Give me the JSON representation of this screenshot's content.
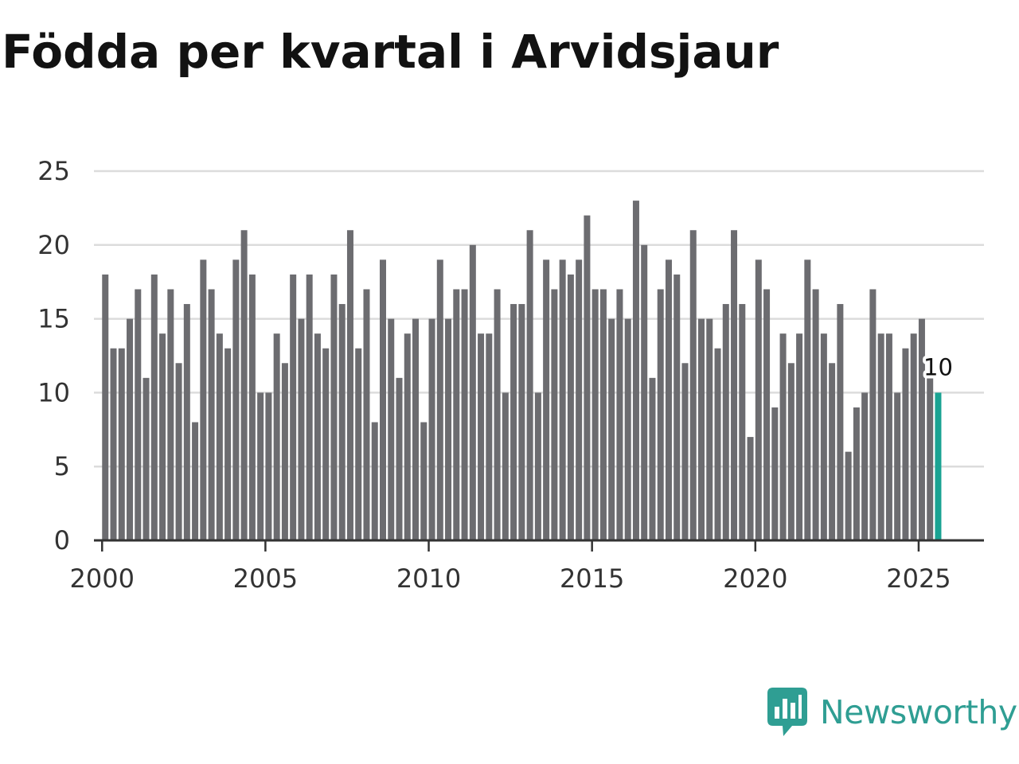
{
  "chart_data": {
    "type": "bar",
    "title": "Födda per kvartal i Arvidsjaur",
    "xlabel": "",
    "ylabel": "",
    "x_start": 2000,
    "x_step": 0.25,
    "xlim": [
      1999.75,
      2027.0
    ],
    "ylim": [
      0,
      25
    ],
    "y_ticks": [
      "0",
      "5",
      "10",
      "15",
      "20",
      "25"
    ],
    "x_ticks": [
      "2000",
      "2005",
      "2010",
      "2015",
      "2020",
      "2025"
    ],
    "grid": true,
    "values": [
      18,
      13,
      13,
      15,
      17,
      11,
      18,
      14,
      17,
      12,
      16,
      8,
      19,
      17,
      14,
      13,
      19,
      21,
      18,
      10,
      10,
      14,
      12,
      18,
      15,
      18,
      14,
      13,
      18,
      16,
      21,
      13,
      17,
      8,
      19,
      15,
      11,
      14,
      15,
      8,
      15,
      19,
      15,
      17,
      17,
      20,
      14,
      14,
      17,
      10,
      16,
      16,
      21,
      10,
      19,
      17,
      19,
      18,
      19,
      22,
      17,
      17,
      15,
      17,
      15,
      23,
      20,
      11,
      17,
      19,
      18,
      12,
      21,
      15,
      15,
      13,
      16,
      21,
      16,
      7,
      19,
      17,
      9,
      14,
      12,
      14,
      19,
      17,
      14,
      12,
      16,
      6,
      9,
      10,
      17,
      14,
      14,
      10,
      13,
      14,
      15,
      11,
      10
    ],
    "highlight_index": 102,
    "bar_color": "#6c6c70",
    "highlight_color": "#1aa393",
    "annotation": "10"
  },
  "brand": {
    "name": "Newsworthy",
    "logo_icon": "newsworthy-chart-bubble-icon",
    "color": "#2f9e93"
  }
}
